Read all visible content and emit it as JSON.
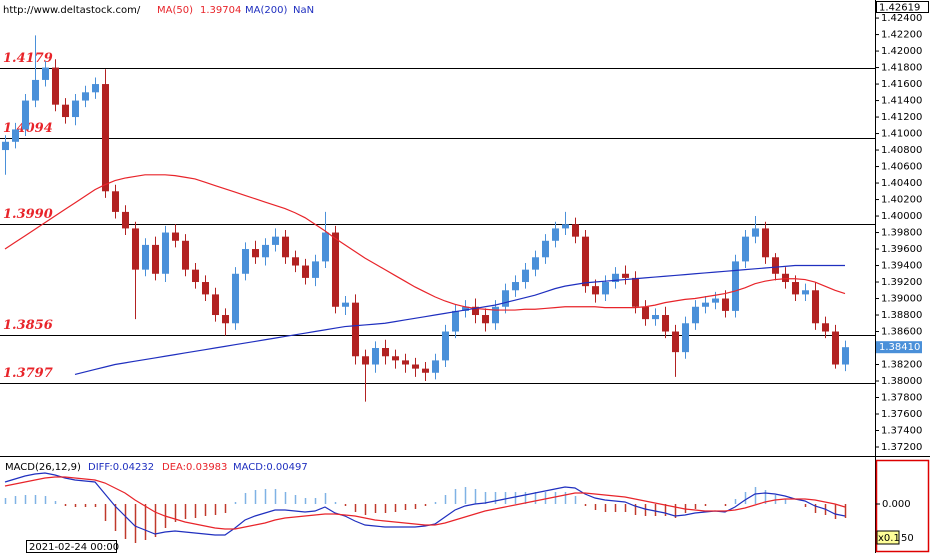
{
  "chart_data": [
    {
      "type": "candlestick",
      "source": "http://www.deltastock.com/",
      "ylim": [
        1.37103,
        1.42619
      ],
      "yticks": [
        {
          "value": 1.372,
          "label": "1.37200"
        },
        {
          "value": 1.374,
          "label": "1.37400"
        },
        {
          "value": 1.376,
          "label": "1.37600"
        },
        {
          "value": 1.378,
          "label": "1.37800"
        },
        {
          "value": 1.38,
          "label": "1.38000"
        },
        {
          "value": 1.382,
          "label": "1.38200"
        },
        {
          "value": 1.384,
          "label": "1.38400"
        },
        {
          "value": 1.386,
          "label": "1.38600"
        },
        {
          "value": 1.388,
          "label": "1.38800"
        },
        {
          "value": 1.39,
          "label": "1.39000"
        },
        {
          "value": 1.392,
          "label": "1.39200"
        },
        {
          "value": 1.394,
          "label": "1.39400"
        },
        {
          "value": 1.396,
          "label": "1.39600"
        },
        {
          "value": 1.398,
          "label": "1.39800"
        },
        {
          "value": 1.4,
          "label": "1.40000"
        },
        {
          "value": 1.402,
          "label": "1.40200"
        },
        {
          "value": 1.404,
          "label": "1.40400"
        },
        {
          "value": 1.406,
          "label": "1.40600"
        },
        {
          "value": 1.408,
          "label": "1.40800"
        },
        {
          "value": 1.41,
          "label": "1.41000"
        },
        {
          "value": 1.412,
          "label": "1.41200"
        },
        {
          "value": 1.414,
          "label": "1.41400"
        },
        {
          "value": 1.416,
          "label": "1.41600"
        },
        {
          "value": 1.418,
          "label": "1.41800"
        },
        {
          "value": 1.42,
          "label": "1.42000"
        },
        {
          "value": 1.422,
          "label": "1.42200"
        },
        {
          "value": 1.424,
          "label": "1.42400"
        }
      ],
      "levels": [
        1.4179,
        1.4094,
        {
          "value": 1.399,
          "label": "1.3990"
        },
        1.3856,
        1.3797
      ],
      "last_price": {
        "value": 1.3841,
        "label": "1.38410"
      },
      "date_label": "2021-02-24 00:00",
      "up_color": "#4a90d9",
      "down_color": "#b22222",
      "open": [
        1.408,
        1.409,
        1.4105,
        1.414,
        1.4165,
        1.418,
        1.4135,
        1.412,
        1.414,
        1.415,
        1.416,
        1.403,
        1.4005,
        1.3985,
        1.3935,
        1.3965,
        1.393,
        1.398,
        1.397,
        1.3935,
        1.392,
        1.3905,
        1.388,
        1.387,
        1.393,
        1.396,
        1.395,
        1.3965,
        1.3975,
        1.395,
        1.394,
        1.3925,
        1.3945,
        1.398,
        1.389,
        1.3895,
        1.383,
        1.382,
        1.384,
        1.383,
        1.3825,
        1.382,
        1.3815,
        1.381,
        1.3825,
        1.386,
        1.3885,
        1.389,
        1.388,
        1.387,
        1.389,
        1.391,
        1.392,
        1.3935,
        1.395,
        1.397,
        1.3985,
        1.399,
        1.3975,
        1.3915,
        1.3905,
        1.392,
        1.393,
        1.3925,
        1.389,
        1.3875,
        1.388,
        1.386,
        1.3835,
        1.387,
        1.389,
        1.3895,
        1.39,
        1.3885,
        1.3945,
        1.3975,
        1.3985,
        1.395,
        1.393,
        1.392,
        1.3905,
        1.391,
        1.387,
        1.386,
        1.382
      ],
      "high": [
        1.4098,
        1.4113,
        1.4148,
        1.4219,
        1.4188,
        1.419,
        1.4143,
        1.4148,
        1.4158,
        1.4168,
        1.4178,
        1.4038,
        1.4013,
        1.3993,
        1.3973,
        1.3975,
        1.3988,
        1.399,
        1.3978,
        1.3943,
        1.3928,
        1.3913,
        1.3888,
        1.3938,
        1.3968,
        1.397,
        1.3973,
        1.3985,
        1.3983,
        1.3958,
        1.3948,
        1.3953,
        1.4005,
        1.3988,
        1.3903,
        1.3905,
        1.3838,
        1.3848,
        1.385,
        1.3838,
        1.3833,
        1.3828,
        1.3823,
        1.3833,
        1.3868,
        1.3893,
        1.3898,
        1.39,
        1.3888,
        1.3898,
        1.3918,
        1.3928,
        1.3943,
        1.3958,
        1.3978,
        1.3993,
        1.4005,
        1.3998,
        1.3983,
        1.3923,
        1.3928,
        1.3938,
        1.394,
        1.3933,
        1.3898,
        1.3888,
        1.389,
        1.3868,
        1.3878,
        1.3898,
        1.3903,
        1.3908,
        1.391,
        1.3953,
        1.3983,
        1.4,
        1.3993,
        1.3955,
        1.3938,
        1.3928,
        1.3918,
        1.392,
        1.3878,
        1.3868,
        1.3849
      ],
      "low": [
        1.405,
        1.4082,
        1.4097,
        1.4132,
        1.4157,
        1.4127,
        1.4112,
        1.411,
        1.4132,
        1.4142,
        1.4022,
        1.3997,
        1.3977,
        1.3875,
        1.3927,
        1.3922,
        1.392,
        1.3962,
        1.3927,
        1.3912,
        1.3897,
        1.3872,
        1.3855,
        1.3862,
        1.3922,
        1.3942,
        1.394,
        1.3957,
        1.3942,
        1.3932,
        1.3917,
        1.3915,
        1.3937,
        1.3882,
        1.388,
        1.382,
        1.3775,
        1.381,
        1.382,
        1.3815,
        1.381,
        1.3805,
        1.38,
        1.3802,
        1.3817,
        1.3852,
        1.3877,
        1.387,
        1.386,
        1.3862,
        1.3882,
        1.3902,
        1.3912,
        1.3927,
        1.3942,
        1.3962,
        1.3977,
        1.3967,
        1.3907,
        1.3895,
        1.3897,
        1.3912,
        1.3917,
        1.3882,
        1.3867,
        1.3867,
        1.3852,
        1.3805,
        1.3827,
        1.3862,
        1.3882,
        1.3887,
        1.3877,
        1.3877,
        1.3937,
        1.3967,
        1.3942,
        1.3922,
        1.3912,
        1.3897,
        1.3897,
        1.3862,
        1.3852,
        1.3815,
        1.3812
      ],
      "close": [
        1.409,
        1.4105,
        1.414,
        1.4165,
        1.418,
        1.4135,
        1.412,
        1.414,
        1.415,
        1.416,
        1.403,
        1.4005,
        1.3985,
        1.3935,
        1.3965,
        1.393,
        1.398,
        1.397,
        1.3935,
        1.392,
        1.3905,
        1.388,
        1.387,
        1.393,
        1.396,
        1.395,
        1.3965,
        1.3975,
        1.395,
        1.394,
        1.3925,
        1.3945,
        1.398,
        1.389,
        1.3895,
        1.383,
        1.382,
        1.384,
        1.383,
        1.3825,
        1.382,
        1.3815,
        1.381,
        1.3825,
        1.386,
        1.3885,
        1.389,
        1.388,
        1.387,
        1.389,
        1.391,
        1.392,
        1.3935,
        1.395,
        1.397,
        1.3985,
        1.399,
        1.3975,
        1.3915,
        1.3905,
        1.392,
        1.393,
        1.3925,
        1.389,
        1.3875,
        1.388,
        1.386,
        1.3835,
        1.387,
        1.389,
        1.3895,
        1.39,
        1.3885,
        1.3945,
        1.3975,
        1.3985,
        1.395,
        1.393,
        1.392,
        1.3905,
        1.391,
        1.387,
        1.386,
        1.382,
        1.3841
      ],
      "series": [
        {
          "name": "MA(50)",
          "value_label": "1.39704",
          "color": "#e8242a",
          "values": [
            1.396,
            1.3968,
            1.3976,
            1.3984,
            1.3992,
            1.4,
            1.4008,
            1.4016,
            1.4024,
            1.4032,
            1.4038,
            1.4043,
            1.4046,
            1.4048,
            1.405,
            1.405,
            1.405,
            1.4049,
            1.4047,
            1.4045,
            1.4041,
            1.4037,
            1.4033,
            1.4029,
            1.4025,
            1.4021,
            1.4017,
            1.4013,
            1.4009,
            1.4004,
            1.3998,
            1.399,
            1.3982,
            1.3973,
            1.3965,
            1.3957,
            1.3949,
            1.3942,
            1.3935,
            1.3928,
            1.3921,
            1.3914,
            1.3908,
            1.3902,
            1.3897,
            1.3893,
            1.389,
            1.3888,
            1.3887,
            1.3886,
            1.3886,
            1.3886,
            1.3887,
            1.3887,
            1.3888,
            1.3889,
            1.389,
            1.389,
            1.389,
            1.389,
            1.3889,
            1.3889,
            1.3889,
            1.3889,
            1.389,
            1.3892,
            1.3895,
            1.3897,
            1.3899,
            1.39,
            1.3902,
            1.3904,
            1.3906,
            1.3909,
            1.3913,
            1.3918,
            1.3921,
            1.3923,
            1.3924,
            1.3924,
            1.3923,
            1.392,
            1.3915,
            1.391,
            1.3906
          ]
        },
        {
          "name": "MA(200)",
          "value_label": "NaN",
          "color": "#1f2fbf",
          "values": [
            null,
            null,
            null,
            null,
            null,
            null,
            null,
            1.3808,
            1.3811,
            1.3814,
            1.3817,
            1.382,
            1.3822,
            1.3824,
            1.3826,
            1.3828,
            1.383,
            1.3832,
            1.3834,
            1.3836,
            1.3838,
            1.384,
            1.3842,
            1.3844,
            1.3846,
            1.3848,
            1.385,
            1.3852,
            1.3854,
            1.3856,
            1.3858,
            1.386,
            1.3862,
            1.3864,
            1.3866,
            1.3867,
            1.3868,
            1.3869,
            1.387,
            1.3872,
            1.3874,
            1.3876,
            1.3878,
            1.388,
            1.3882,
            1.3884,
            1.3886,
            1.3888,
            1.389,
            1.3892,
            1.3895,
            1.3898,
            1.3901,
            1.3904,
            1.3908,
            1.3912,
            1.3915,
            1.3917,
            1.3919,
            1.392,
            1.3921,
            1.3922,
            1.3923,
            1.3924,
            1.3925,
            1.3926,
            1.3927,
            1.3928,
            1.3929,
            1.393,
            1.3931,
            1.3932,
            1.3933,
            1.3934,
            1.3935,
            1.3936,
            1.3937,
            1.3938,
            1.3939,
            1.394,
            1.394,
            1.394,
            1.394,
            1.394,
            1.394
          ]
        }
      ]
    },
    {
      "type": "macd",
      "title": "MACD(26,12,9)",
      "ylim": [
        -0.0044,
        0.0042
      ],
      "yticks": [
        {
          "value": 0,
          "label": "0.000"
        }
      ],
      "scale_label": "x0.1",
      "scale_value": 50,
      "histogram": {
        "label": "MACD:0.00497",
        "color": "#1f2fbf",
        "up_color": "#7fb2e5",
        "down_color": "#c0392b",
        "values": [
          0.0006,
          0.0008,
          0.0009,
          0.0009,
          0.0008,
          0.0003,
          -0.0002,
          -0.0003,
          -0.0003,
          -0.0003,
          -0.0017,
          -0.0027,
          -0.0035,
          -0.0039,
          -0.0036,
          -0.0033,
          -0.0024,
          -0.0018,
          -0.0015,
          -0.0014,
          -0.0012,
          -0.0011,
          -0.0009,
          0.0002,
          0.0011,
          0.0014,
          0.0015,
          0.0015,
          0.0012,
          0.0009,
          0.0006,
          0.0006,
          0.0011,
          0.0002,
          -0.0002,
          -0.0008,
          -0.0011,
          -0.0009,
          -0.0009,
          -0.0008,
          -0.0006,
          -0.0005,
          -0.0002,
          0.0002,
          0.0009,
          0.0015,
          0.0017,
          0.0015,
          0.0012,
          0.0012,
          0.0012,
          0.0012,
          0.0012,
          0.0012,
          0.0012,
          0.0012,
          0.0012,
          0.0008,
          -0.0002,
          -0.0006,
          -0.0008,
          -0.0008,
          -0.0008,
          -0.0011,
          -0.0012,
          -0.0012,
          -0.0012,
          -0.0014,
          -0.0009,
          -0.0005,
          -0.0002,
          0.0,
          -0.0002,
          0.0005,
          0.0012,
          0.0017,
          0.0014,
          0.0009,
          0.0005,
          0.0,
          -0.0003,
          -0.0009,
          -0.0011,
          -0.0015,
          -0.0014
        ]
      },
      "series": [
        {
          "label": "DIFF:0.04232",
          "color": "#1f2fbf",
          "values": [
            0.0022,
            0.0025,
            0.0028,
            0.003,
            0.0031,
            0.0029,
            0.0026,
            0.0024,
            0.0023,
            0.0022,
            0.001,
            -0.0002,
            -0.0012,
            -0.0022,
            -0.0026,
            -0.003,
            -0.0028,
            -0.0027,
            -0.0028,
            -0.0029,
            -0.003,
            -0.0031,
            -0.0031,
            -0.0024,
            -0.0016,
            -0.0012,
            -0.0009,
            -0.0006,
            -0.0006,
            -0.0007,
            -0.0008,
            -0.0007,
            -0.0003,
            -0.0009,
            -0.0012,
            -0.0017,
            -0.0021,
            -0.0022,
            -0.0023,
            -0.0023,
            -0.0023,
            -0.0023,
            -0.0022,
            -0.002,
            -0.0013,
            -0.0006,
            -0.0002,
            0.0,
            0.0001,
            0.0003,
            0.0005,
            0.0007,
            0.0009,
            0.0011,
            0.0013,
            0.0015,
            0.0017,
            0.0016,
            0.001,
            0.0006,
            0.0004,
            0.0003,
            0.0002,
            -0.0002,
            -0.0005,
            -0.0007,
            -0.0009,
            -0.0012,
            -0.0011,
            -0.0009,
            -0.0008,
            -0.0007,
            -0.0008,
            -0.0003,
            0.0004,
            0.001,
            0.0011,
            0.001,
            0.0008,
            0.0005,
            0.0003,
            -0.0002,
            -0.0005,
            -0.001,
            -0.0012
          ]
        },
        {
          "label": "DEA:0.03983",
          "color": "#e8242a",
          "values": [
            0.0018,
            0.002,
            0.0022,
            0.0024,
            0.0026,
            0.0027,
            0.0027,
            0.0026,
            0.0025,
            0.0024,
            0.0021,
            0.0016,
            0.0011,
            0.0004,
            -0.0002,
            -0.0008,
            -0.0012,
            -0.0015,
            -0.0018,
            -0.002,
            -0.0022,
            -0.0024,
            -0.0025,
            -0.0025,
            -0.0023,
            -0.0021,
            -0.0019,
            -0.0016,
            -0.0014,
            -0.0013,
            -0.0012,
            -0.0011,
            -0.001,
            -0.001,
            -0.0011,
            -0.0012,
            -0.0014,
            -0.0016,
            -0.0017,
            -0.0018,
            -0.0019,
            -0.002,
            -0.0021,
            -0.0021,
            -0.0019,
            -0.0016,
            -0.0013,
            -0.001,
            -0.0007,
            -0.0005,
            -0.0003,
            -0.0001,
            0.0001,
            0.0003,
            0.0005,
            0.0007,
            0.0009,
            0.0011,
            0.0011,
            0.001,
            0.0009,
            0.0008,
            0.0007,
            0.0005,
            0.0003,
            0.0001,
            -0.0001,
            -0.0003,
            -0.0005,
            -0.0006,
            -0.0007,
            -0.0007,
            -0.0007,
            -0.0006,
            -0.0004,
            -0.0001,
            0.0002,
            0.0004,
            0.0005,
            0.0005,
            0.0005,
            0.0004,
            0.0002,
            0.0,
            -0.0003
          ]
        }
      ]
    }
  ]
}
